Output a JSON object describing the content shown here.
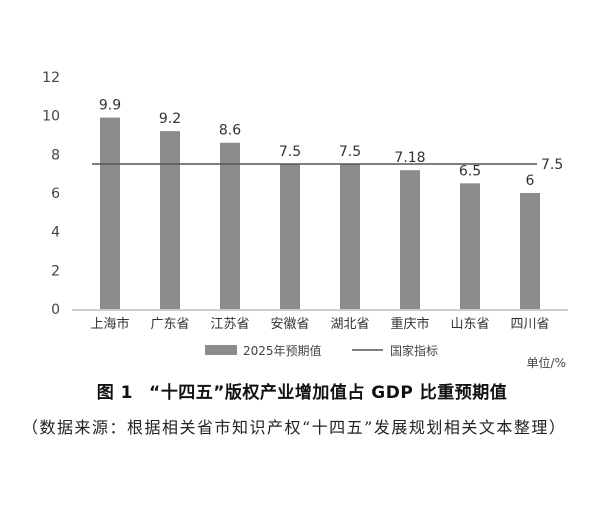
{
  "chart_data": {
    "type": "bar",
    "categories": [
      "上海市",
      "广东省",
      "江苏省",
      "安徽省",
      "湖北省",
      "重庆市",
      "山东省",
      "四川省"
    ],
    "series": [
      {
        "name": "2025年预期值",
        "values": [
          9.9,
          9.2,
          8.6,
          7.5,
          7.5,
          7.18,
          6.5,
          6
        ],
        "value_labels": [
          "9.9",
          "9.2",
          "8.6",
          "7.5",
          "7.5",
          "7.18",
          "6.5",
          "6"
        ],
        "color": "#8c8c8c"
      }
    ],
    "reference_line": {
      "name": "国家指标",
      "value": 7.5,
      "label": "7.5",
      "color": "#555555"
    },
    "y_ticks": [
      0,
      2,
      4,
      6,
      8,
      10,
      12
    ],
    "ylim": [
      0,
      12
    ],
    "unit_label": "单位/%",
    "legend_position": "bottom-center",
    "grid": false
  },
  "caption": {
    "fig_label": "图 1",
    "title": "“十四五”版权产业增加值占 GDP 比重预期值"
  },
  "source_note": "（数据来源：根据相关省市知识产权“十四五”发展规划相关文本整理）"
}
